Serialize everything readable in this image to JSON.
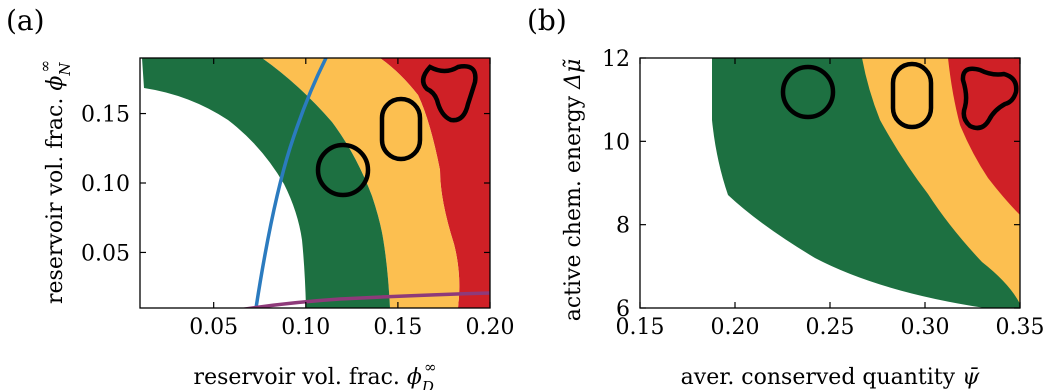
{
  "colors": {
    "green": "#1d7041",
    "yellow": "#fcbf50",
    "red": "#cf2026",
    "blue": "#2b7bbf",
    "purple": "#8e3a7a",
    "outline": "#000000"
  },
  "chart_data": [
    {
      "type": "heatmap",
      "panel_label": "(a)",
      "title": "",
      "xlabel": "reservoir vol. frac. ",
      "xlabel_symbol": "ϕ",
      "xlabel_sub": "D",
      "xlabel_sup": "∞",
      "ylabel": "reservoir vol. frac. ",
      "ylabel_symbol": "ϕ",
      "ylabel_sub": "N",
      "ylabel_sup": "∞",
      "xlim": [
        0.01,
        0.2
      ],
      "ylim": [
        0.01,
        0.19
      ],
      "xticks": [
        "0.05",
        "0.10",
        "0.15",
        "0.20"
      ],
      "xtick_values": [
        0.05,
        0.1,
        0.15,
        0.2
      ],
      "yticks": [
        "0.05",
        "0.10",
        "0.15"
      ],
      "ytick_values": [
        0.05,
        0.1,
        0.15
      ],
      "regions": [
        {
          "name": "none",
          "color": "white"
        },
        {
          "name": "one droplet",
          "color": "green"
        },
        {
          "name": "elongated droplet",
          "color": "yellow"
        },
        {
          "name": "three-lobed droplet",
          "color": "red"
        }
      ],
      "lines": [
        {
          "color": "blue",
          "x": [
            0.073,
            0.085,
            0.095,
            0.105,
            0.115
          ],
          "y": [
            0.01,
            0.06,
            0.1,
            0.145,
            0.19
          ]
        },
        {
          "color": "purple",
          "x": [
            0.055,
            0.08,
            0.12,
            0.16,
            0.2
          ],
          "y": [
            0.01,
            0.0145,
            0.0175,
            0.019,
            0.021
          ]
        }
      ]
    },
    {
      "type": "heatmap",
      "panel_label": "(b)",
      "title": "",
      "xlabel": "aver. conserved quantity ",
      "xlabel_symbol": "ψ̄",
      "ylabel": "active chem. energy ",
      "ylabel_symbol": "Δμ̃",
      "xlim": [
        0.15,
        0.35
      ],
      "ylim": [
        6,
        12
      ],
      "xticks": [
        "0.15",
        "0.20",
        "0.25",
        "0.30",
        "0.35"
      ],
      "xtick_values": [
        0.15,
        0.2,
        0.25,
        0.3,
        0.35
      ],
      "yticks": [
        "6",
        "8",
        "10",
        "12"
      ],
      "ytick_values": [
        6,
        8,
        10,
        12
      ],
      "regions": [
        {
          "name": "none",
          "color": "white"
        },
        {
          "name": "one droplet",
          "color": "green"
        },
        {
          "name": "elongated droplet",
          "color": "yellow"
        },
        {
          "name": "three-lobed droplet",
          "color": "red"
        }
      ]
    }
  ]
}
